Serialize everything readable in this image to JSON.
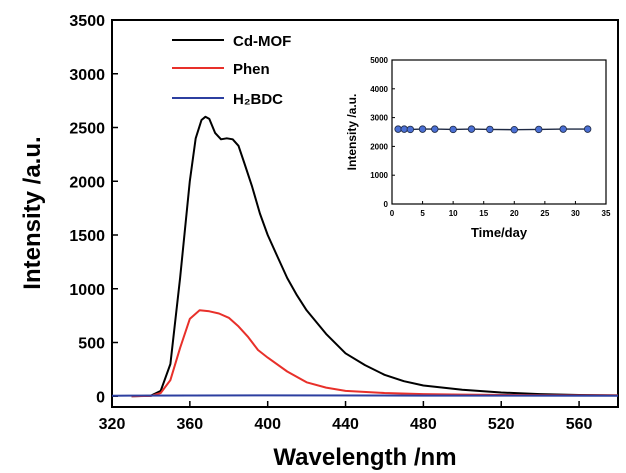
{
  "chart_data": [
    {
      "type": "line",
      "xlabel": "Wavelength /nm",
      "ylabel": "Intensity /a.u.",
      "xlim": [
        320,
        580
      ],
      "ylim": [
        -100,
        3500
      ],
      "xticks": [
        320,
        360,
        400,
        440,
        480,
        520,
        560
      ],
      "yticks": [
        0,
        500,
        1000,
        1500,
        2000,
        2500,
        3000,
        3500
      ],
      "legend_position": "top-left",
      "grid": false,
      "series": [
        {
          "name": "Cd-MOF",
          "color": "#000000",
          "x": [
            330,
            340,
            345,
            350,
            355,
            360,
            363,
            366,
            368,
            370,
            373,
            376,
            379,
            382,
            385,
            388,
            392,
            396,
            400,
            405,
            410,
            415,
            420,
            430,
            440,
            450,
            460,
            470,
            480,
            500,
            520,
            540,
            560,
            580
          ],
          "y": [
            0,
            5,
            50,
            300,
            1100,
            2000,
            2400,
            2570,
            2600,
            2580,
            2450,
            2390,
            2400,
            2390,
            2330,
            2170,
            1950,
            1700,
            1500,
            1300,
            1100,
            940,
            800,
            580,
            400,
            290,
            200,
            140,
            100,
            60,
            35,
            20,
            12,
            8
          ]
        },
        {
          "name": "Phen",
          "color": "#e8302a",
          "x": [
            330,
            340,
            345,
            350,
            355,
            360,
            365,
            370,
            375,
            380,
            385,
            390,
            395,
            400,
            410,
            420,
            430,
            440,
            460,
            480,
            500,
            540,
            580
          ],
          "y": [
            0,
            3,
            30,
            150,
            450,
            720,
            800,
            790,
            770,
            730,
            650,
            550,
            430,
            360,
            230,
            130,
            80,
            50,
            30,
            20,
            15,
            10,
            8
          ]
        },
        {
          "name": "H₂BDC",
          "color": "#2c3fa0",
          "x": [
            320,
            400,
            480,
            580
          ],
          "y": [
            5,
            8,
            6,
            5
          ]
        }
      ]
    },
    {
      "type": "line",
      "xlabel": "Time/day",
      "ylabel": "Intensity /a.u.",
      "xlim": [
        0,
        35
      ],
      "ylim": [
        0,
        5000
      ],
      "xticks": [
        0,
        5,
        10,
        15,
        20,
        25,
        30,
        35
      ],
      "yticks": [
        0,
        1000,
        2000,
        3000,
        4000,
        5000
      ],
      "grid": false,
      "series": [
        {
          "color": "#1f2a44",
          "marker_color": "#4a6fd4",
          "x": [
            1,
            2,
            3,
            5,
            7,
            10,
            13,
            16,
            20,
            24,
            28,
            32
          ],
          "y": [
            2600,
            2600,
            2590,
            2600,
            2600,
            2590,
            2600,
            2590,
            2580,
            2590,
            2600,
            2600
          ]
        }
      ]
    }
  ]
}
